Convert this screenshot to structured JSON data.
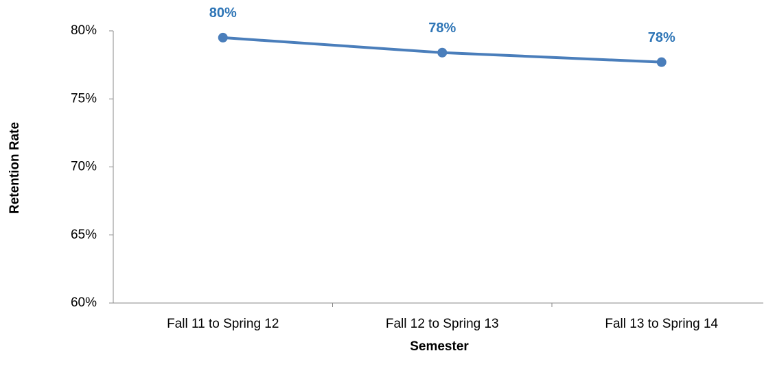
{
  "chart_data": {
    "type": "line",
    "x_label": "Semester",
    "y_label": "Retention Rate",
    "categories": [
      "Fall 11 to Spring 12",
      "Fall 12 to Spring 13",
      "Fall 13 to Spring 14"
    ],
    "series": [
      {
        "name": "Retention Rate",
        "color": "#4a7ebb",
        "values": [
          79.5,
          78.4,
          77.7
        ],
        "value_labels": [
          "80%",
          "78%",
          "78%"
        ]
      }
    ],
    "label_color": "#2e75b6",
    "ylim": [
      60,
      80
    ],
    "yticks": [
      {
        "value": 60,
        "label": "60%"
      },
      {
        "value": 65,
        "label": "65%"
      },
      {
        "value": 70,
        "label": "70%"
      },
      {
        "value": 75,
        "label": "75%"
      },
      {
        "value": 80,
        "label": "80%"
      }
    ],
    "grid": false
  }
}
